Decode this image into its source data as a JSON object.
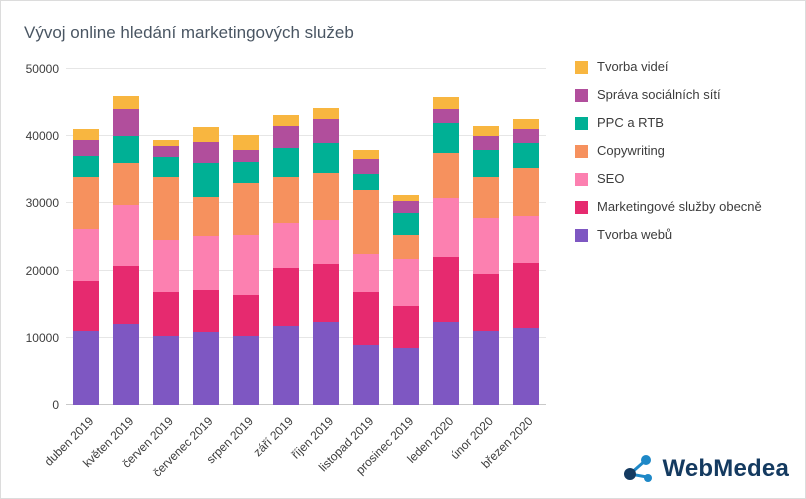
{
  "chart_data": {
    "type": "bar",
    "stacked": true,
    "title": "Vývoj online hledání marketingových služeb",
    "categories": [
      "duben 2019",
      "květen 2019",
      "červen 2019",
      "červenec 2019",
      "srpen 2019",
      "září 2019",
      "říjen 2019",
      "listopad 2019",
      "prosinec 2019",
      "leden 2020",
      "únor 2020",
      "březen 2020"
    ],
    "series": [
      {
        "name": "Tvorba webů",
        "color": "#7E57C2",
        "values": [
          11000,
          12000,
          10200,
          10800,
          10300,
          11700,
          12300,
          8900,
          8500,
          12300,
          11000,
          11500
        ]
      },
      {
        "name": "Marketingové služby obecně",
        "color": "#E62A6F",
        "values": [
          7400,
          8700,
          6600,
          6300,
          6000,
          8700,
          8700,
          7900,
          6300,
          9700,
          8500,
          9600
        ]
      },
      {
        "name": "SEO",
        "color": "#FC80B0",
        "values": [
          7800,
          9000,
          7800,
          8000,
          9000,
          6700,
          6500,
          5700,
          7000,
          8800,
          8300,
          7000
        ]
      },
      {
        "name": "Copywriting",
        "color": "#F6915E",
        "values": [
          7800,
          6300,
          9400,
          5900,
          7700,
          6900,
          7000,
          9500,
          3500,
          6700,
          6200,
          7100
        ]
      },
      {
        "name": "PPC a RTB",
        "color": "#00B095",
        "values": [
          3000,
          4000,
          2900,
          5000,
          3200,
          4300,
          4500,
          2400,
          3200,
          4500,
          4000,
          3800
        ]
      },
      {
        "name": "Správa sociálních sítí",
        "color": "#B14E9C",
        "values": [
          2500,
          4000,
          1700,
          3200,
          1800,
          3200,
          3500,
          2200,
          1800,
          2100,
          2000,
          2000
        ]
      },
      {
        "name": "Tvorba videí",
        "color": "#F8B640",
        "values": [
          1500,
          2000,
          900,
          2100,
          2200,
          1700,
          1700,
          1400,
          1000,
          1700,
          1500,
          1500
        ]
      }
    ],
    "legend_order_top_to_bottom": [
      "Tvorba videí",
      "Správa sociálních sítí",
      "PPC a RTB",
      "Copywriting",
      "SEO",
      "Marketingové služby obecně",
      "Tvorba webů"
    ],
    "xlabel": "",
    "ylabel": "",
    "ylim": [
      0,
      50000
    ],
    "yticks": [
      0,
      10000,
      20000,
      30000,
      40000,
      50000
    ],
    "grid": true,
    "legend_position": "right"
  },
  "branding": {
    "logo_text": "WebMedea",
    "logo_color_dark": "#143A60",
    "logo_color_blue": "#1E88C7"
  },
  "colors": {
    "background": "#FFFFFF",
    "title_text": "#4A5663",
    "axis_text": "#3D3D3D",
    "gridline": "#E6E6E6"
  }
}
